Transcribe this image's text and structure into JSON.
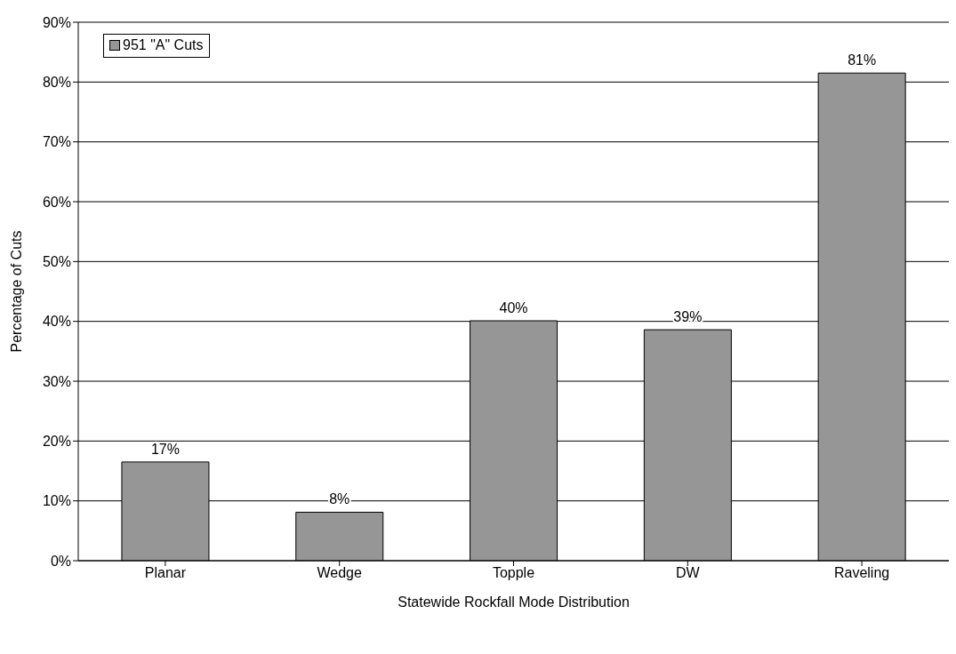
{
  "chart_data": {
    "type": "bar",
    "xlabel": "Statewide Rockfall Mode Distribution",
    "ylabel": "Percentage of Cuts",
    "categories": [
      "Planar",
      "Wedge",
      "Topple",
      "DW",
      "Raveling"
    ],
    "series": [
      {
        "name": "951 \"A\" Cuts",
        "color": "#969696",
        "values": [
          16.5,
          8.1,
          40.1,
          38.6,
          81.5
        ],
        "value_labels": [
          "17%",
          "8%",
          "40%",
          "39%",
          "81%"
        ]
      }
    ],
    "ylim": [
      0,
      90
    ],
    "yticks": [
      {
        "value": 0,
        "label": "0%"
      },
      {
        "value": 10,
        "label": "10%"
      },
      {
        "value": 20,
        "label": "20%"
      },
      {
        "value": 30,
        "label": "30%"
      },
      {
        "value": 40,
        "label": "40%"
      },
      {
        "value": 50,
        "label": "50%"
      },
      {
        "value": 60,
        "label": "60%"
      },
      {
        "value": 70,
        "label": "70%"
      },
      {
        "value": 80,
        "label": "80%"
      },
      {
        "value": 90,
        "label": "90%"
      }
    ],
    "grid": "y",
    "legend": "top left"
  }
}
